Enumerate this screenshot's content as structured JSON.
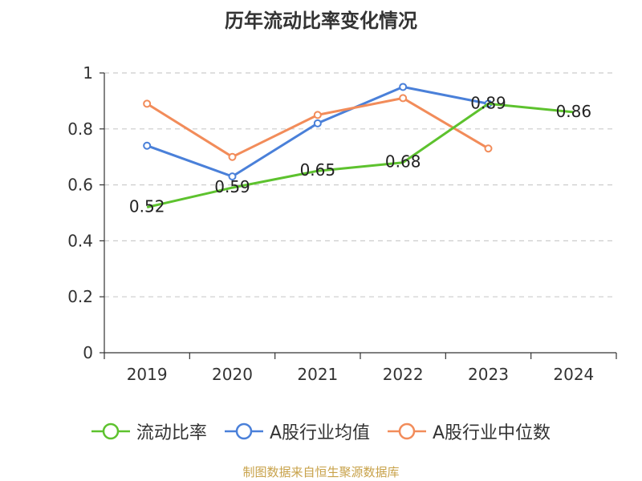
{
  "chart_data": {
    "type": "line",
    "title": "历年流动比率变化情况",
    "categories": [
      "2019",
      "2020",
      "2021",
      "2022",
      "2023",
      "2024"
    ],
    "ylim": [
      0,
      1
    ],
    "yticks": [
      "0",
      "0.2",
      "0.4",
      "0.6",
      "0.8",
      "1"
    ],
    "grid": true,
    "legend_position": "bottom",
    "series": [
      {
        "name": "流动比率",
        "color": "#5dc22e",
        "values": [
          0.52,
          0.59,
          0.65,
          0.68,
          0.89,
          0.86
        ],
        "labels": [
          "0.52",
          "0.59",
          "0.65",
          "0.68",
          "0.89",
          "0.86"
        ]
      },
      {
        "name": "A股行业均值",
        "color": "#4a80d9",
        "values": [
          0.74,
          0.63,
          0.82,
          0.95,
          0.89,
          null
        ]
      },
      {
        "name": "A股行业中位数",
        "color": "#f28c5a",
        "values": [
          0.89,
          0.7,
          0.85,
          0.91,
          0.73,
          null
        ]
      }
    ]
  },
  "source_note": "制图数据来自恒生聚源数据库"
}
